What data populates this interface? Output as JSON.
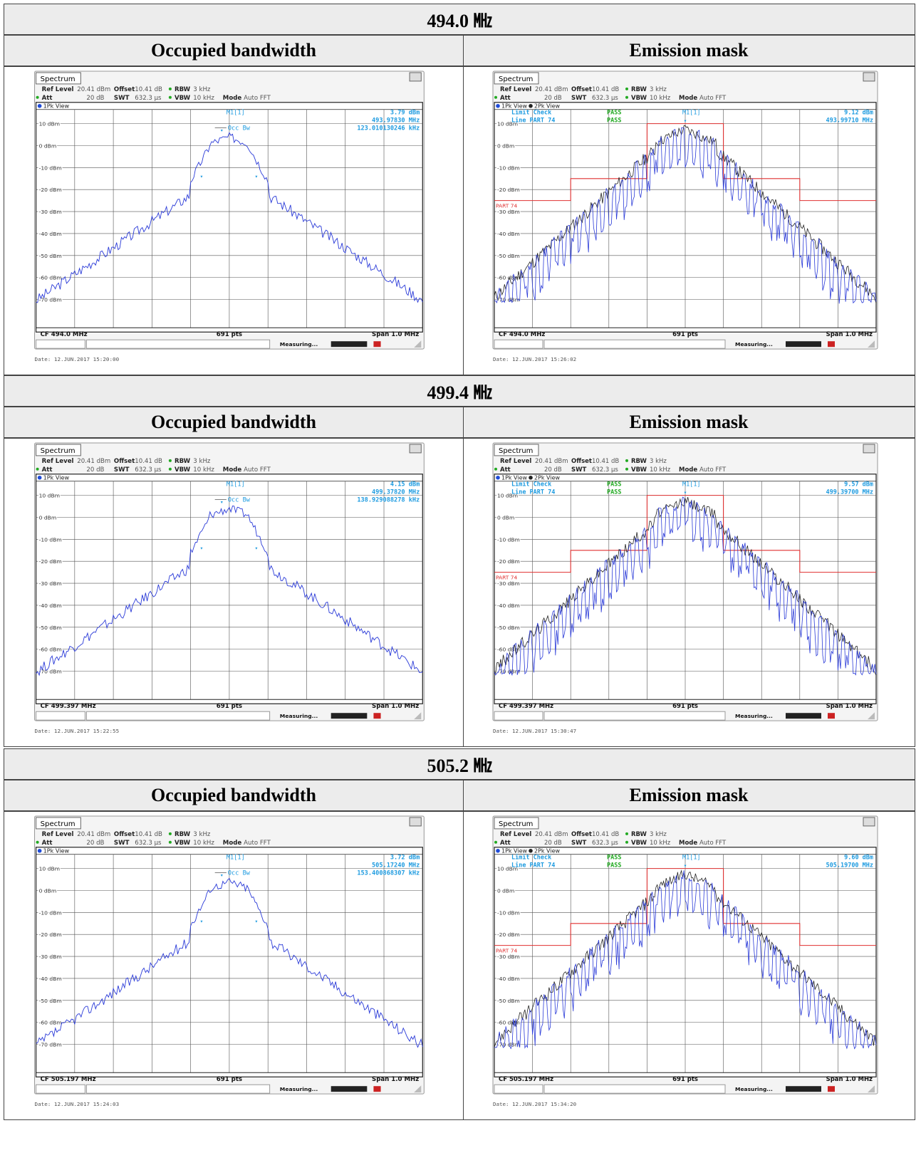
{
  "blocks": [
    {
      "freq": "494.0 ㎒",
      "left_header": "Occupied bandwidth",
      "right_header": "Emission mask",
      "obw": {
        "title": "Spectrum",
        "ref_label": "Ref Level",
        "ref_val": "20.41 dBm",
        "offset_label": "Offset",
        "offset_val": "10.41 dB",
        "rbw_label": "RBW",
        "rbw_val": "3 kHz",
        "att_label": "Att",
        "att_val": "20 dB",
        "swt_label": "SWT",
        "swt_val": "632.3 µs",
        "vbw_label": "VBW",
        "vbw_val": "10 kHz",
        "mode_label": "Mode",
        "mode_val": "Auto FFT",
        "view": "1Pk View",
        "marker_name": "M1[1]",
        "marker_level": "3.79 dBm",
        "marker_freq": "493.97830 MHz",
        "occ_label": "Occ Bw",
        "occ_val": "123.010130246 kHz",
        "cf": "CF 494.0 MHz",
        "pts": "691 pts",
        "span": "Span 1.0 MHz",
        "status": "Measuring...",
        "date": "Date: 12.JUN.2017  15:20:00"
      },
      "mask": {
        "title": "Spectrum",
        "ref_label": "Ref Level",
        "ref_val": "20.41 dBm",
        "offset_label": "Offset",
        "offset_val": "10.41 dB",
        "rbw_label": "RBW",
        "rbw_val": "3 kHz",
        "att_label": "Att",
        "att_val": "20 dB",
        "swt_label": "SWT",
        "swt_val": "632.3 µs",
        "vbw_label": "VBW",
        "vbw_val": "10 kHz",
        "mode_label": "Mode",
        "mode_val": "Auto FFT",
        "view1": "1Pk View",
        "view2": "2Pk View",
        "limit_check": "Limit Check",
        "limit_line": "Line PART 74",
        "pass1": "PASS",
        "pass2": "PASS",
        "marker_name": "M1[1]",
        "marker_level": "9.12 dBm",
        "marker_freq": "493.99710 MHz",
        "limit_name": "PART 74",
        "cf": "CF 494.0 MHz",
        "pts": "691 pts",
        "span": "Span 1.0 MHz",
        "status": "Measuring...",
        "date": "Date: 12.JUN.2017  15:26:02"
      }
    },
    {
      "freq": "499.4 ㎒",
      "left_header": "Occupied bandwidth",
      "right_header": "Emission mask",
      "obw": {
        "title": "Spectrum",
        "ref_label": "Ref Level",
        "ref_val": "20.41 dBm",
        "offset_label": "Offset",
        "offset_val": "10.41 dB",
        "rbw_label": "RBW",
        "rbw_val": "3 kHz",
        "att_label": "Att",
        "att_val": "20 dB",
        "swt_label": "SWT",
        "swt_val": "632.3 µs",
        "vbw_label": "VBW",
        "vbw_val": "10 kHz",
        "mode_label": "Mode",
        "mode_val": "Auto FFT",
        "view": "1Pk View",
        "marker_name": "M1[1]",
        "marker_level": "4.15 dBm",
        "marker_freq": "499.37820 MHz",
        "occ_label": "Occ Bw",
        "occ_val": "138.929088278 kHz",
        "cf": "CF 499.397 MHz",
        "pts": "691 pts",
        "span": "Span 1.0 MHz",
        "status": "Measuring...",
        "date": "Date: 12.JUN.2017  15:22:55"
      },
      "mask": {
        "title": "Spectrum",
        "ref_label": "Ref Level",
        "ref_val": "20.41 dBm",
        "offset_label": "Offset",
        "offset_val": "10.41 dB",
        "rbw_label": "RBW",
        "rbw_val": "3 kHz",
        "att_label": "Att",
        "att_val": "20 dB",
        "swt_label": "SWT",
        "swt_val": "632.3 µs",
        "vbw_label": "VBW",
        "vbw_val": "10 kHz",
        "mode_label": "Mode",
        "mode_val": "Auto FFT",
        "view1": "1Pk View",
        "view2": "2Pk View",
        "limit_check": "Limit Check",
        "limit_line": "Line PART 74",
        "pass1": "PASS",
        "pass2": "PASS",
        "marker_name": "M1[1]",
        "marker_level": "9.57 dBm",
        "marker_freq": "499.39700 MHz",
        "limit_name": "PART 74",
        "cf": "CF 499.397 MHz",
        "pts": "691 pts",
        "span": "Span 1.0 MHz",
        "status": "Measuring...",
        "date": "Date: 12.JUN.2017  15:30:47"
      }
    },
    {
      "freq": "505.2 ㎒",
      "left_header": "Occupied bandwidth",
      "right_header": "Emission mask",
      "obw": {
        "title": "Spectrum",
        "ref_label": "Ref Level",
        "ref_val": "20.41 dBm",
        "offset_label": "Offset",
        "offset_val": "10.41 dB",
        "rbw_label": "RBW",
        "rbw_val": "3 kHz",
        "att_label": "Att",
        "att_val": "20 dB",
        "swt_label": "SWT",
        "swt_val": "632.3 µs",
        "vbw_label": "VBW",
        "vbw_val": "10 kHz",
        "mode_label": "Mode",
        "mode_val": "Auto FFT",
        "view": "1Pk View",
        "marker_name": "M1[1]",
        "marker_level": "3.72 dBm",
        "marker_freq": "505.17240 MHz",
        "occ_label": "Occ Bw",
        "occ_val": "153.400868307 kHz",
        "cf": "CF 505.197 MHz",
        "pts": "691 pts",
        "span": "Span 1.0 MHz",
        "status": "Measuring...",
        "date": "Date: 12.JUN.2017  15:24:03"
      },
      "mask": {
        "title": "Spectrum",
        "ref_label": "Ref Level",
        "ref_val": "20.41 dBm",
        "offset_label": "Offset",
        "offset_val": "10.41 dB",
        "rbw_label": "RBW",
        "rbw_val": "3 kHz",
        "att_label": "Att",
        "att_val": "20 dB",
        "swt_label": "SWT",
        "swt_val": "632.3 µs",
        "vbw_label": "VBW",
        "vbw_val": "10 kHz",
        "mode_label": "Mode",
        "mode_val": "Auto FFT",
        "view1": "1Pk View",
        "view2": "2Pk View",
        "limit_check": "Limit Check",
        "limit_line": "Line PART 74",
        "pass1": "PASS",
        "pass2": "PASS",
        "marker_name": "M1[1]",
        "marker_level": "9.60 dBm",
        "marker_freq": "505.19700 MHz",
        "limit_name": "PART 74",
        "cf": "CF 505.197 MHz",
        "pts": "691 pts",
        "span": "Span 1.0 MHz",
        "status": "Measuring...",
        "date": "Date: 12.JUN.2017  15:34:20"
      }
    }
  ],
  "y_ticks": [
    "10 dBm",
    "0 dBm",
    "-10 dBm",
    "-20 dBm",
    "-30 dBm",
    "-40 dBm",
    "-50 dBm",
    "-60 dBm",
    "-70 dBm"
  ],
  "colors": {
    "trace1": "#2b3bd8",
    "trace2": "#222222",
    "limit": "#e03030",
    "marker": "#1e9be0",
    "pass": "#22aa22",
    "grid": "#555555"
  }
}
